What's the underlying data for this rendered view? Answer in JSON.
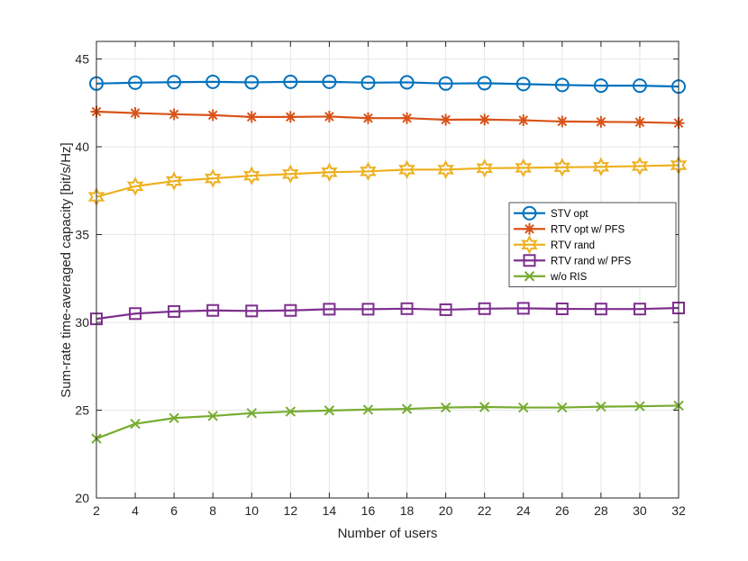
{
  "chart_data": {
    "type": "line",
    "xlabel": "Number of users",
    "ylabel": "Sum-rate time-averaged capacity [bit/s/Hz]",
    "xlim": [
      2,
      32
    ],
    "ylim": [
      20,
      46
    ],
    "xticks": [
      2,
      4,
      6,
      8,
      10,
      12,
      14,
      16,
      18,
      20,
      22,
      24,
      26,
      28,
      30,
      32
    ],
    "yticks": [
      20,
      25,
      30,
      35,
      40,
      45
    ],
    "grid": true,
    "legend_position": "right",
    "x": [
      2,
      4,
      6,
      8,
      10,
      12,
      14,
      16,
      18,
      20,
      22,
      24,
      26,
      28,
      30,
      32
    ],
    "series": [
      {
        "name": "STV opt",
        "color": "#0072BD",
        "marker": "circle",
        "values": [
          43.6,
          43.65,
          43.68,
          43.7,
          43.67,
          43.7,
          43.7,
          43.65,
          43.67,
          43.6,
          43.62,
          43.57,
          43.52,
          43.48,
          43.48,
          43.43
        ]
      },
      {
        "name": "RTV opt w/ PFS",
        "color": "#D95319",
        "marker": "asterisk",
        "values": [
          42.0,
          41.92,
          41.85,
          41.8,
          41.7,
          41.7,
          41.72,
          41.63,
          41.63,
          41.54,
          41.55,
          41.51,
          41.44,
          41.42,
          41.4,
          41.35
        ]
      },
      {
        "name": "RTV rand",
        "color": "#EDB120",
        "marker": "hexagram",
        "values": [
          37.15,
          37.75,
          38.05,
          38.2,
          38.35,
          38.45,
          38.55,
          38.6,
          38.7,
          38.7,
          38.78,
          38.8,
          38.83,
          38.86,
          38.9,
          38.95
        ]
      },
      {
        "name": "RTV rand w/ PFS",
        "color": "#7E2F8E",
        "marker": "square",
        "values": [
          30.2,
          30.5,
          30.62,
          30.68,
          30.65,
          30.68,
          30.75,
          30.75,
          30.78,
          30.72,
          30.78,
          30.8,
          30.77,
          30.76,
          30.76,
          30.82
        ]
      },
      {
        "name": "w/o RIS",
        "color": "#77AC30",
        "marker": "x",
        "values": [
          23.38,
          24.22,
          24.55,
          24.67,
          24.83,
          24.92,
          24.98,
          25.03,
          25.07,
          25.15,
          25.18,
          25.15,
          25.15,
          25.2,
          25.22,
          25.26
        ]
      }
    ]
  }
}
